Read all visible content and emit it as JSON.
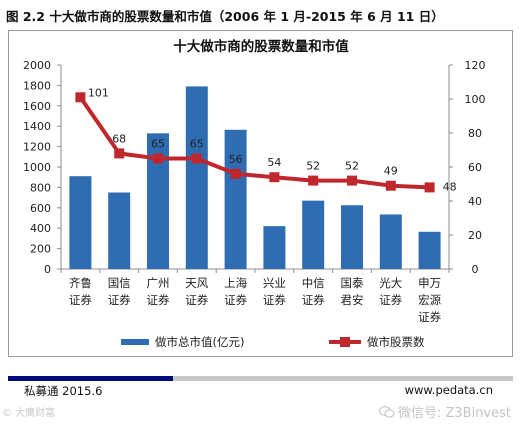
{
  "caption": "图 2.2  十大做市商的股票数量和市值（2006 年 1 月-2015 年 6 月 11 日）",
  "footer": {
    "source": "私募通 2015.6",
    "site": "www.pedata.cn"
  },
  "watermark": {
    "left": "© 大鹰财富",
    "right": "微信号: Z3Binvest",
    "icon": "wechat-icon"
  },
  "colors": {
    "bar": "#2f6db3",
    "line": "#c0272d",
    "footer_accent": "#000a78",
    "footer_band": "#c8c8c8"
  },
  "chart_data": {
    "type": "bar",
    "title": "十大做市商的股票数量和市值",
    "categories": [
      [
        "齐鲁",
        "证券"
      ],
      [
        "国信",
        "证券"
      ],
      [
        "广州",
        "证券"
      ],
      [
        "天风",
        "证券"
      ],
      [
        "上海",
        "证券"
      ],
      [
        "兴业",
        "证券"
      ],
      [
        "中信",
        "证券"
      ],
      [
        "国泰",
        "君安"
      ],
      [
        "光大",
        "证券"
      ],
      [
        "申万",
        "宏源",
        "证券"
      ]
    ],
    "series": [
      {
        "name": "做市总市值(亿元)",
        "type": "bar",
        "axis": "left",
        "values": [
          910,
          750,
          1330,
          1790,
          1365,
          420,
          670,
          625,
          535,
          365
        ]
      },
      {
        "name": "做市股票数",
        "type": "line",
        "axis": "right",
        "values": [
          101,
          68,
          65,
          65,
          56,
          54,
          52,
          52,
          49,
          48
        ]
      }
    ],
    "ylim_left": [
      0,
      2000
    ],
    "yticks_left": [
      0,
      200,
      400,
      600,
      800,
      1000,
      1200,
      1400,
      1600,
      1800,
      2000
    ],
    "ylim_right": [
      0,
      120
    ],
    "yticks_right": [
      0,
      20,
      40,
      60,
      80,
      100,
      120
    ],
    "grid": false,
    "legend_position": "bottom"
  }
}
